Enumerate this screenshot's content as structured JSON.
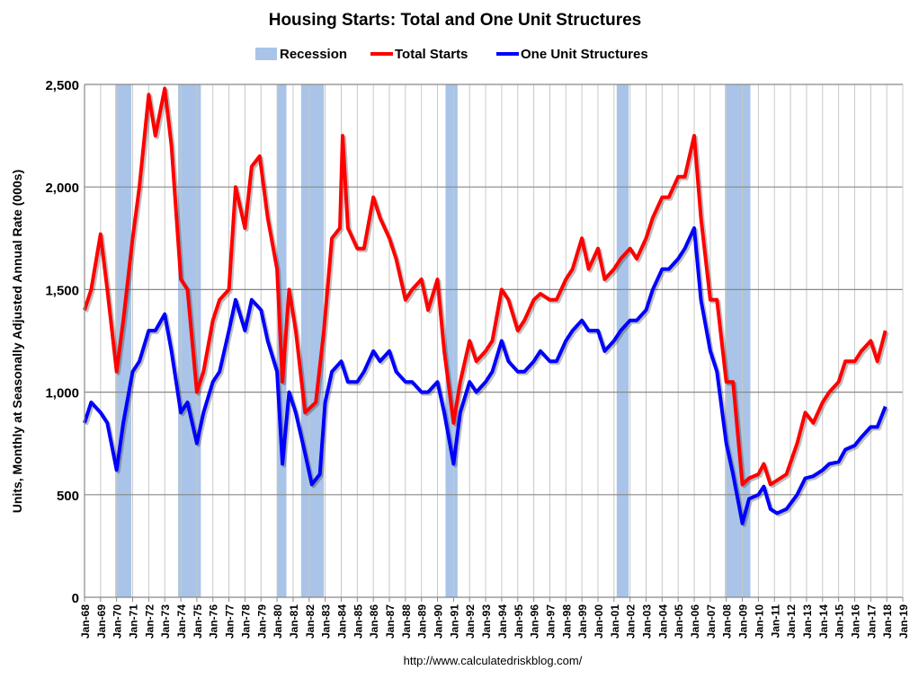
{
  "chart_data": {
    "type": "line",
    "title": "Housing Starts: Total and One Unit Structures",
    "ylabel": "Units, Monthly at Seasonally Adjusted Annual Rate (000s)",
    "xlabel": "",
    "ylim": [
      0,
      2500
    ],
    "yticks": [
      0,
      500,
      1000,
      1500,
      2000,
      2500
    ],
    "ytick_labels": [
      "0",
      "500",
      "1,000",
      "1,500",
      "2,000",
      "2,500"
    ],
    "xlim": [
      "1968-01",
      "2019-01"
    ],
    "xtick_labels": [
      "Jan-68",
      "Jan-69",
      "Jan-70",
      "Jan-71",
      "Jan-72",
      "Jan-73",
      "Jan-74",
      "Jan-75",
      "Jan-76",
      "Jan-77",
      "Jan-78",
      "Jan-79",
      "Jan-80",
      "Jan-81",
      "Jan-82",
      "Jan-83",
      "Jan-84",
      "Jan-85",
      "Jan-86",
      "Jan-87",
      "Jan-88",
      "Jan-89",
      "Jan-90",
      "Jan-91",
      "Jan-92",
      "Jan-93",
      "Jan-94",
      "Jan-95",
      "Jan-96",
      "Jan-97",
      "Jan-98",
      "Jan-99",
      "Jan-00",
      "Jan-01",
      "Jan-02",
      "Jan-03",
      "Jan-04",
      "Jan-05",
      "Jan-06",
      "Jan-07",
      "Jan-08",
      "Jan-09",
      "Jan-10",
      "Jan-11",
      "Jan-12",
      "Jan-13",
      "Jan-14",
      "Jan-15",
      "Jan-16",
      "Jan-17",
      "Jan-18",
      "Jan-19"
    ],
    "grid": true,
    "legend": {
      "placement": "top",
      "entries": [
        "Recession",
        "Total Starts",
        "One Unit Structures"
      ]
    },
    "recession_color": "#a9c4e8",
    "recessions": [
      [
        "1969-12",
        "1970-11"
      ],
      [
        "1973-11",
        "1975-03"
      ],
      [
        "1980-01",
        "1980-07"
      ],
      [
        "1981-07",
        "1982-11"
      ],
      [
        "1990-07",
        "1991-03"
      ],
      [
        "2001-03",
        "2001-11"
      ],
      [
        "2007-12",
        "2009-06"
      ]
    ],
    "series": [
      {
        "name": "Total Starts",
        "color": "#ff0000",
        "points": [
          [
            "1968-01",
            1400
          ],
          [
            "1968-06",
            1500
          ],
          [
            "1969-01",
            1770
          ],
          [
            "1969-06",
            1500
          ],
          [
            "1970-01",
            1100
          ],
          [
            "1970-06",
            1350
          ],
          [
            "1971-01",
            1750
          ],
          [
            "1971-06",
            2000
          ],
          [
            "1972-01",
            2450
          ],
          [
            "1972-06",
            2250
          ],
          [
            "1973-01",
            2480
          ],
          [
            "1973-06",
            2200
          ],
          [
            "1974-01",
            1550
          ],
          [
            "1974-06",
            1500
          ],
          [
            "1975-01",
            1000
          ],
          [
            "1975-06",
            1100
          ],
          [
            "1976-01",
            1350
          ],
          [
            "1976-06",
            1450
          ],
          [
            "1977-01",
            1500
          ],
          [
            "1977-06",
            2000
          ],
          [
            "1978-01",
            1800
          ],
          [
            "1978-06",
            2100
          ],
          [
            "1978-12",
            2150
          ],
          [
            "1979-06",
            1850
          ],
          [
            "1980-01",
            1600
          ],
          [
            "1980-05",
            1050
          ],
          [
            "1980-10",
            1500
          ],
          [
            "1981-03",
            1300
          ],
          [
            "1981-10",
            900
          ],
          [
            "1982-06",
            950
          ],
          [
            "1982-12",
            1300
          ],
          [
            "1983-06",
            1750
          ],
          [
            "1983-12",
            1800
          ],
          [
            "1984-02",
            2250
          ],
          [
            "1984-06",
            1800
          ],
          [
            "1985-01",
            1700
          ],
          [
            "1985-06",
            1700
          ],
          [
            "1986-01",
            1950
          ],
          [
            "1986-06",
            1850
          ],
          [
            "1987-01",
            1750
          ],
          [
            "1987-06",
            1650
          ],
          [
            "1988-01",
            1450
          ],
          [
            "1988-06",
            1500
          ],
          [
            "1989-01",
            1550
          ],
          [
            "1989-06",
            1400
          ],
          [
            "1990-01",
            1550
          ],
          [
            "1990-06",
            1200
          ],
          [
            "1991-01",
            850
          ],
          [
            "1991-06",
            1050
          ],
          [
            "1992-01",
            1250
          ],
          [
            "1992-06",
            1150
          ],
          [
            "1993-01",
            1200
          ],
          [
            "1993-06",
            1250
          ],
          [
            "1994-01",
            1500
          ],
          [
            "1994-06",
            1450
          ],
          [
            "1995-01",
            1300
          ],
          [
            "1995-06",
            1350
          ],
          [
            "1996-01",
            1450
          ],
          [
            "1996-06",
            1480
          ],
          [
            "1997-01",
            1450
          ],
          [
            "1997-06",
            1450
          ],
          [
            "1998-01",
            1550
          ],
          [
            "1998-06",
            1600
          ],
          [
            "1999-01",
            1750
          ],
          [
            "1999-06",
            1600
          ],
          [
            "2000-01",
            1700
          ],
          [
            "2000-06",
            1550
          ],
          [
            "2001-01",
            1600
          ],
          [
            "2001-06",
            1650
          ],
          [
            "2002-01",
            1700
          ],
          [
            "2002-06",
            1650
          ],
          [
            "2003-01",
            1750
          ],
          [
            "2003-06",
            1850
          ],
          [
            "2004-01",
            1950
          ],
          [
            "2004-06",
            1950
          ],
          [
            "2005-01",
            2050
          ],
          [
            "2005-06",
            2050
          ],
          [
            "2006-01",
            2250
          ],
          [
            "2006-06",
            1850
          ],
          [
            "2007-01",
            1450
          ],
          [
            "2007-06",
            1450
          ],
          [
            "2008-01",
            1050
          ],
          [
            "2008-06",
            1050
          ],
          [
            "2009-01",
            550
          ],
          [
            "2009-06",
            580
          ],
          [
            "2010-01",
            600
          ],
          [
            "2010-05",
            650
          ],
          [
            "2010-10",
            550
          ],
          [
            "2011-03",
            570
          ],
          [
            "2011-10",
            600
          ],
          [
            "2012-06",
            750
          ],
          [
            "2012-12",
            900
          ],
          [
            "2013-06",
            850
          ],
          [
            "2014-01",
            950
          ],
          [
            "2014-06",
            1000
          ],
          [
            "2015-01",
            1050
          ],
          [
            "2015-06",
            1150
          ],
          [
            "2016-01",
            1150
          ],
          [
            "2016-06",
            1200
          ],
          [
            "2017-01",
            1250
          ],
          [
            "2017-06",
            1150
          ],
          [
            "2017-12",
            1300
          ]
        ]
      },
      {
        "name": "One Unit Structures",
        "color": "#0000ff",
        "points": [
          [
            "1968-01",
            850
          ],
          [
            "1968-06",
            950
          ],
          [
            "1969-01",
            900
          ],
          [
            "1969-06",
            850
          ],
          [
            "1970-01",
            620
          ],
          [
            "1970-06",
            850
          ],
          [
            "1971-01",
            1100
          ],
          [
            "1971-06",
            1150
          ],
          [
            "1972-01",
            1300
          ],
          [
            "1972-06",
            1300
          ],
          [
            "1973-01",
            1380
          ],
          [
            "1973-06",
            1200
          ],
          [
            "1974-01",
            900
          ],
          [
            "1974-06",
            950
          ],
          [
            "1975-01",
            750
          ],
          [
            "1975-06",
            900
          ],
          [
            "1976-01",
            1050
          ],
          [
            "1976-06",
            1100
          ],
          [
            "1977-01",
            1300
          ],
          [
            "1977-06",
            1450
          ],
          [
            "1978-01",
            1300
          ],
          [
            "1978-06",
            1450
          ],
          [
            "1979-01",
            1400
          ],
          [
            "1979-06",
            1250
          ],
          [
            "1980-01",
            1100
          ],
          [
            "1980-05",
            650
          ],
          [
            "1980-10",
            1000
          ],
          [
            "1981-03",
            900
          ],
          [
            "1981-10",
            700
          ],
          [
            "1982-03",
            550
          ],
          [
            "1982-09",
            600
          ],
          [
            "1983-01",
            950
          ],
          [
            "1983-06",
            1100
          ],
          [
            "1984-01",
            1150
          ],
          [
            "1984-06",
            1050
          ],
          [
            "1985-01",
            1050
          ],
          [
            "1985-06",
            1100
          ],
          [
            "1986-01",
            1200
          ],
          [
            "1986-06",
            1150
          ],
          [
            "1987-01",
            1200
          ],
          [
            "1987-06",
            1100
          ],
          [
            "1988-01",
            1050
          ],
          [
            "1988-06",
            1050
          ],
          [
            "1989-01",
            1000
          ],
          [
            "1989-06",
            1000
          ],
          [
            "1990-01",
            1050
          ],
          [
            "1990-06",
            900
          ],
          [
            "1991-01",
            650
          ],
          [
            "1991-06",
            900
          ],
          [
            "1992-01",
            1050
          ],
          [
            "1992-06",
            1000
          ],
          [
            "1993-01",
            1050
          ],
          [
            "1993-06",
            1100
          ],
          [
            "1994-01",
            1250
          ],
          [
            "1994-06",
            1150
          ],
          [
            "1995-01",
            1100
          ],
          [
            "1995-06",
            1100
          ],
          [
            "1996-01",
            1150
          ],
          [
            "1996-06",
            1200
          ],
          [
            "1997-01",
            1150
          ],
          [
            "1997-06",
            1150
          ],
          [
            "1998-01",
            1250
          ],
          [
            "1998-06",
            1300
          ],
          [
            "1999-01",
            1350
          ],
          [
            "1999-06",
            1300
          ],
          [
            "2000-01",
            1300
          ],
          [
            "2000-06",
            1200
          ],
          [
            "2001-01",
            1250
          ],
          [
            "2001-06",
            1300
          ],
          [
            "2002-01",
            1350
          ],
          [
            "2002-06",
            1350
          ],
          [
            "2003-01",
            1400
          ],
          [
            "2003-06",
            1500
          ],
          [
            "2004-01",
            1600
          ],
          [
            "2004-06",
            1600
          ],
          [
            "2005-01",
            1650
          ],
          [
            "2005-06",
            1700
          ],
          [
            "2006-01",
            1800
          ],
          [
            "2006-06",
            1450
          ],
          [
            "2007-01",
            1200
          ],
          [
            "2007-06",
            1100
          ],
          [
            "2008-01",
            750
          ],
          [
            "2008-06",
            600
          ],
          [
            "2009-01",
            360
          ],
          [
            "2009-06",
            480
          ],
          [
            "2010-01",
            500
          ],
          [
            "2010-05",
            540
          ],
          [
            "2010-10",
            430
          ],
          [
            "2011-03",
            410
          ],
          [
            "2011-10",
            430
          ],
          [
            "2012-06",
            500
          ],
          [
            "2012-12",
            580
          ],
          [
            "2013-06",
            590
          ],
          [
            "2014-01",
            620
          ],
          [
            "2014-06",
            650
          ],
          [
            "2015-01",
            660
          ],
          [
            "2015-06",
            720
          ],
          [
            "2016-01",
            740
          ],
          [
            "2016-06",
            780
          ],
          [
            "2017-01",
            830
          ],
          [
            "2017-06",
            830
          ],
          [
            "2017-12",
            930
          ]
        ]
      }
    ],
    "source_note": "http://www.calculatedriskblog.com/"
  }
}
